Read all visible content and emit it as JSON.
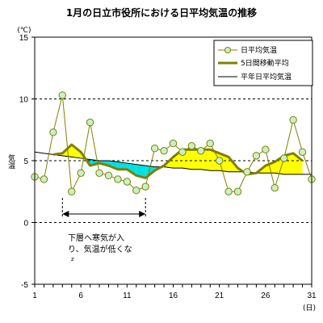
{
  "chart_data": {
    "type": "line",
    "title": "1月の日立市役所における日平均気温の推移",
    "y_unit": "(℃)",
    "x_unit": "(日)",
    "ylabel": "気温",
    "ylim": [
      -5,
      15
    ],
    "yticks": [
      -5,
      0,
      5,
      10,
      15
    ],
    "xlim": [
      1,
      31
    ],
    "xticks": [
      1,
      6,
      11,
      16,
      21,
      26,
      31
    ],
    "x": [
      1,
      2,
      3,
      4,
      5,
      6,
      7,
      8,
      9,
      10,
      11,
      12,
      13,
      14,
      15,
      16,
      17,
      18,
      19,
      20,
      21,
      22,
      23,
      24,
      25,
      26,
      27,
      28,
      29,
      30,
      31
    ],
    "series": [
      {
        "name": "日平均気温",
        "style": "markers",
        "color": "#808000",
        "marker_fill": "#c8f0c8",
        "values": [
          3.7,
          3.5,
          7.3,
          10.3,
          2.5,
          4.0,
          8.1,
          4.0,
          3.8,
          3.5,
          3.3,
          2.6,
          2.9,
          6.0,
          5.8,
          6.4,
          5.7,
          6.2,
          5.8,
          6.4,
          5.0,
          2.5,
          2.5,
          4.1,
          5.4,
          5.9,
          2.8,
          5.2,
          8.3,
          5.7,
          3.5
        ]
      },
      {
        "name": "5日間移動平均",
        "style": "thick",
        "color": "#808000",
        "values": [
          null,
          null,
          5.5,
          5.6,
          6.3,
          5.7,
          4.6,
          4.8,
          4.6,
          4.3,
          4.3,
          3.8,
          3.6,
          4.2,
          4.6,
          5.3,
          5.9,
          5.9,
          5.9,
          5.9,
          5.6,
          5.3,
          4.4,
          3.9,
          4.0,
          4.6,
          4.9,
          5.4,
          5.6,
          5.0,
          null
        ]
      },
      {
        "name": "平年日平均気温",
        "style": "thin",
        "color": "#000000",
        "values": [
          5.7,
          5.6,
          5.5,
          5.4,
          5.3,
          5.2,
          5.1,
          5.0,
          5.0,
          4.9,
          4.8,
          4.7,
          4.6,
          4.5,
          4.5,
          4.4,
          4.4,
          4.3,
          4.3,
          4.2,
          4.2,
          4.1,
          4.1,
          4.1,
          4.0,
          4.0,
          4.0,
          3.9,
          3.9,
          3.9,
          3.9
        ]
      }
    ],
    "fill_above_color": "#ffff00",
    "fill_below_color": "#00e0e0",
    "grid": "horizontal-dashed",
    "legend_position": "top-right",
    "annotation": {
      "text_line1": "下層へ寒気が入",
      "text_line2": "り、気温が低くな",
      "text_line3": "z",
      "span": [
        4,
        13
      ]
    }
  }
}
